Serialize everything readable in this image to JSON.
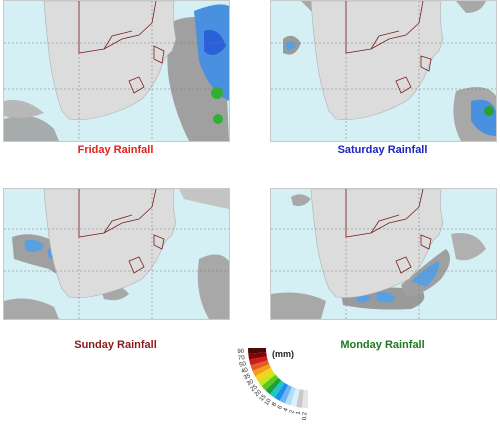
{
  "panels": [
    {
      "id": "friday",
      "caption": "Friday Rainfall"
    },
    {
      "id": "saturday",
      "caption": "Saturday Rainfall"
    },
    {
      "id": "sunday",
      "caption": "Sunday Rainfall"
    },
    {
      "id": "monday",
      "caption": "Monday Rainfall"
    }
  ],
  "caption_colors": {
    "friday": "#e3211c",
    "saturday": "#1c23c8",
    "sunday": "#8b1a1a",
    "monday": "#1e7a1e"
  },
  "legend": {
    "unit": "(mm)",
    "ticks": [
      "90",
      "70",
      "50",
      "40",
      "35",
      "30",
      "25",
      "20",
      "15",
      "10",
      "8",
      "6",
      "4",
      "2",
      "1",
      "0.2"
    ],
    "colors": [
      "#4a0a0a",
      "#8b0000",
      "#c81e1e",
      "#e85a1e",
      "#f59a1e",
      "#f5d21e",
      "#c8e61e",
      "#5ac81e",
      "#1e9e3c",
      "#1ec8c8",
      "#1e8cf0",
      "#6eb4f5",
      "#b4dcf5",
      "#dcf0fa",
      "#c8c8c8",
      "#e6e6e6"
    ]
  }
}
